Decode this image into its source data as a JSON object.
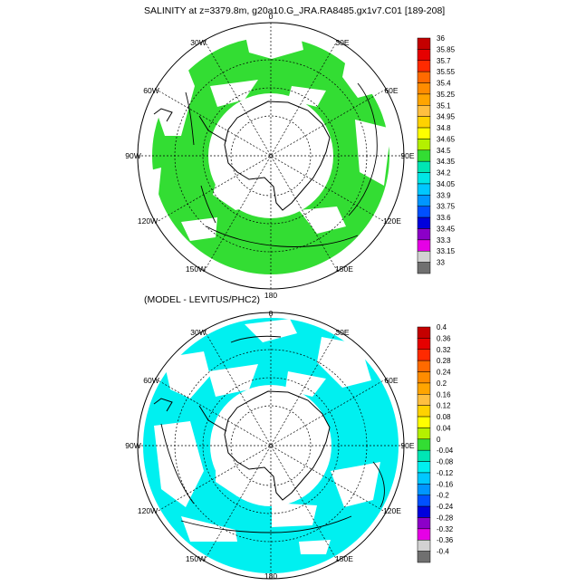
{
  "title1": "SALINITY at z=3379.8m, g20a10.G_JRA.RA8485.gx1v7.C01 [189-208]",
  "title2": "(MODEL - LEVITUS/PHC2)",
  "lon_labels": {
    "lon_0": "0",
    "lon_30e": "30E",
    "lon_60e": "60E",
    "lon_90e": "90E",
    "lon_120e": "120E",
    "lon_150e": "150E",
    "lon_180": "180",
    "lon_150w": "150W",
    "lon_120w": "120W",
    "lon_90w": "90W",
    "lon_60w": "60W",
    "lon_30w": "30W"
  },
  "colorbar1": {
    "labels": [
      "36",
      "35.85",
      "35.7",
      "35.55",
      "35.4",
      "35.25",
      "35.1",
      "34.95",
      "34.8",
      "34.65",
      "34.5",
      "34.35",
      "34.2",
      "34.05",
      "33.9",
      "33.75",
      "33.6",
      "33.45",
      "33.3",
      "33.15",
      "33"
    ],
    "colors": [
      "#c40000",
      "#e60000",
      "#ff2a00",
      "#ff6a00",
      "#ff8c00",
      "#ffa500",
      "#ffbf40",
      "#ffd200",
      "#ffff00",
      "#b4f000",
      "#33dd33",
      "#00e6b4",
      "#00e6e6",
      "#00c8ff",
      "#0096ff",
      "#0050ff",
      "#0000dc",
      "#8c00c8",
      "#e600e6",
      "#d2d2d2",
      "#707070"
    ]
  },
  "colorbar2": {
    "labels": [
      "0.4",
      "0.36",
      "0.32",
      "0.28",
      "0.24",
      "0.2",
      "0.16",
      "0.12",
      "0.08",
      "0.04",
      "0",
      "-0.04",
      "-0.08",
      "-0.12",
      "-0.16",
      "-0.2",
      "-0.24",
      "-0.28",
      "-0.32",
      "-0.36",
      "-0.4"
    ],
    "colors": [
      "#c40000",
      "#e60000",
      "#ff2a00",
      "#ff6a00",
      "#ff8c00",
      "#ffa500",
      "#ffbf40",
      "#ffd200",
      "#ffff00",
      "#b4f000",
      "#33dd33",
      "#00e6b4",
      "#00f0f0",
      "#00c8ff",
      "#0096ff",
      "#0050ff",
      "#0000dc",
      "#8c00c8",
      "#e600e6",
      "#d2d2d2",
      "#707070"
    ]
  },
  "map1_fill_color": "#33dd33",
  "map2_fill_color": "#00f0f0"
}
